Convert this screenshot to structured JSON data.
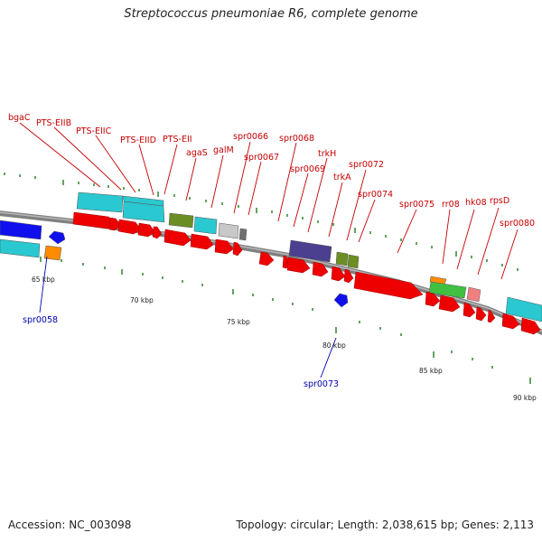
{
  "title": "Streptococcus pneumoniae R6, complete genome",
  "footer": {
    "accession": "Accession: NC_003098",
    "topology": "Topology: circular; Length: 2,038,615 bp; Genes: 2,113"
  },
  "colors": {
    "backbone": "#808080",
    "forward_gene": "#ee0000",
    "reverse_gene": "#1010ee",
    "transporter": "#2ac8d0",
    "regulator": "#6b8e23",
    "membrane": "#4b3f8f",
    "rna": "#90ee40",
    "label_forward": "#c40000",
    "label_reverse": "#0000b0",
    "tick": "#207a20"
  },
  "scale_labels": [
    "65 kbp",
    "70 kbp",
    "75 kbp",
    "80 kbp",
    "85 kbp",
    "90 kbp"
  ],
  "forward_labels": [
    "bgaC",
    "PTS-EIIB",
    "PTS-EIIC",
    "PTS-EIID",
    "PTS-EII",
    "agaS",
    "galM",
    "spr0066",
    "spr0067",
    "spr0068",
    "spr0069",
    "trkH",
    "trkA",
    "spr0072",
    "spr0074",
    "spr0075",
    "rr08",
    "hk08",
    "rpsD",
    "spr0080"
  ],
  "reverse_labels": [
    "spr0058",
    "spr0073"
  ]
}
